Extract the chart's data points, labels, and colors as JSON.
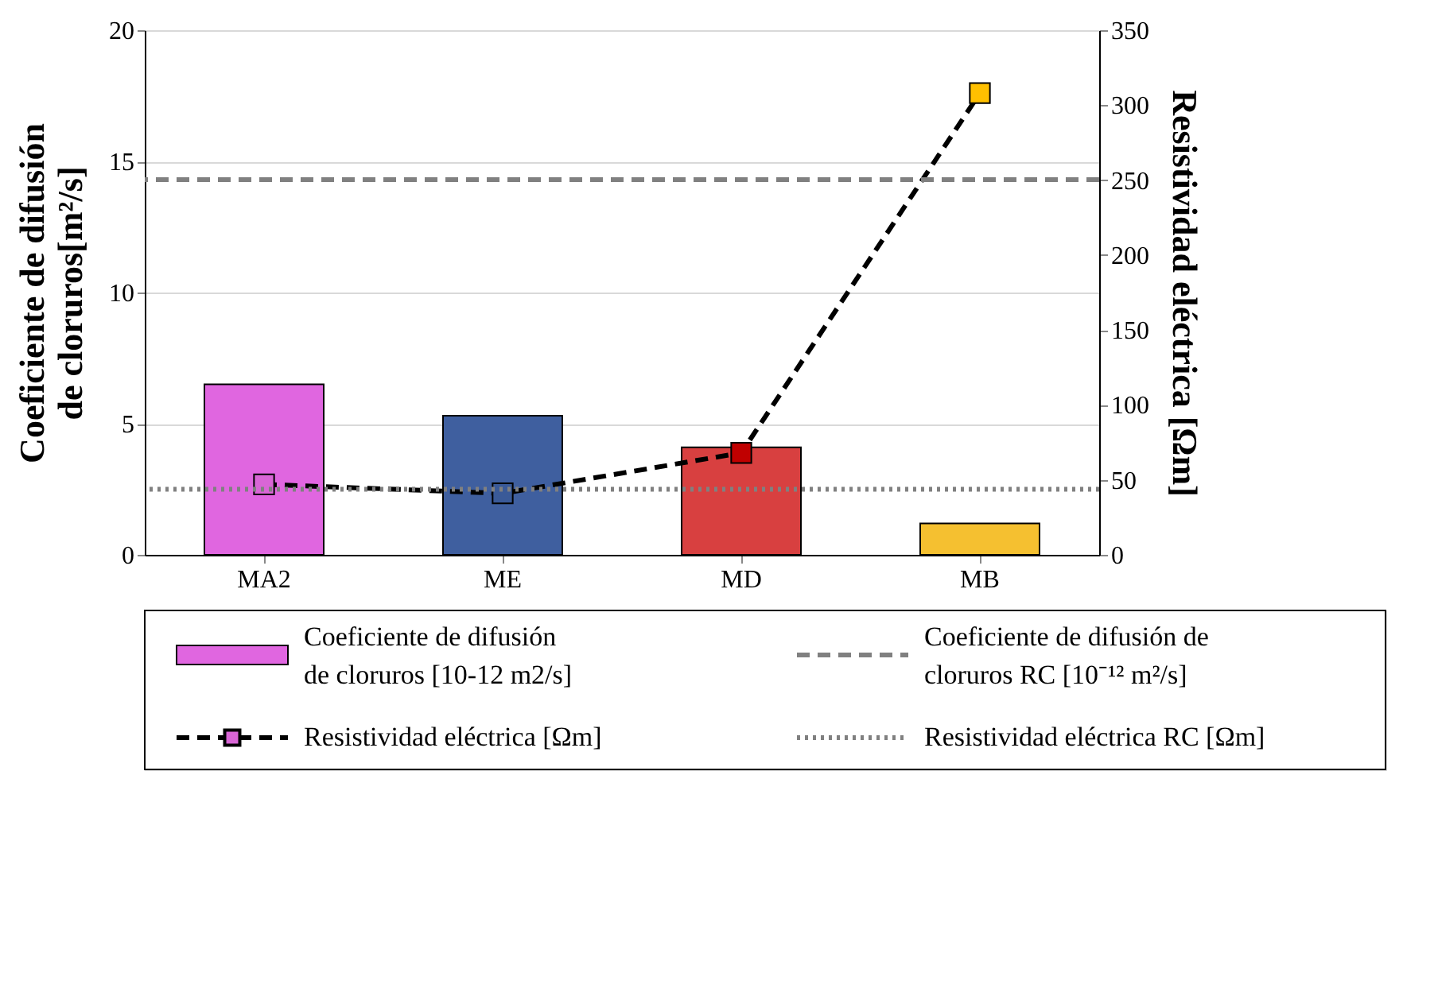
{
  "chart_data": {
    "type": "bar",
    "categories": [
      "MA2",
      "ME",
      "MD",
      "MB"
    ],
    "ylabel": "Coeficiente de difusión de cloruros[m²/s]",
    "y2label": "Resistividad eléctrica [Ωm]",
    "series": [
      {
        "name": "Coeficiente de difusión de cloruros [10-12 m2/s]",
        "colors": [
          "#e066e0",
          "#3f5f9f",
          "#d84040",
          "#f5c030"
        ],
        "values": [
          6.5,
          5.3,
          4.1,
          1.2
        ]
      },
      {
        "name": "Resistividad eléctrica [Ωm]",
        "type": "line",
        "axis": "y2",
        "color": "#000000",
        "colors": [
          "#d966d6",
          "#3a5a98",
          "#c00000",
          "#ffc000"
        ],
        "values": [
          47,
          41,
          68,
          308
        ],
        "marker": "square",
        "line_style": "dashed"
      }
    ],
    "ref_lines": [
      {
        "axis": "y",
        "value": 14.3,
        "label": "Coeficiente de difusión de cloruros RC [10⁻¹² m²/s]",
        "color": "#808080",
        "line_style": "dashed"
      },
      {
        "axis": "y",
        "value": 2.5,
        "label": "Resistividad eléctrica RC [Ωm]",
        "color": "#808080",
        "line_style": "dotted"
      }
    ],
    "ylim": [
      0,
      20
    ],
    "yticks": [
      0,
      5,
      10,
      15,
      20
    ],
    "y2lim": [
      0,
      350
    ],
    "y2ticks": [
      0,
      50,
      100,
      150,
      200,
      250,
      300,
      350
    ],
    "grid": "y",
    "legend": "bottom"
  }
}
